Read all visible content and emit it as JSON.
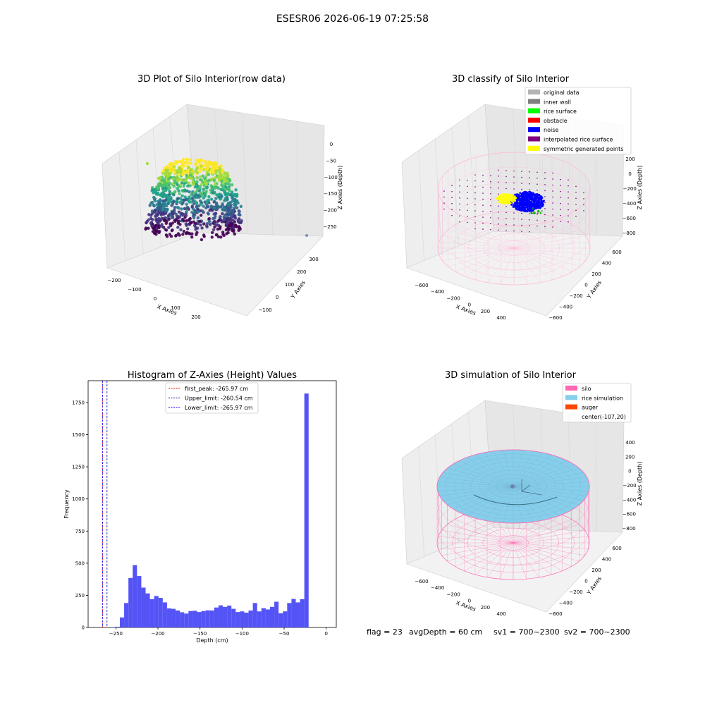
{
  "suptitle": "ESESR06 2026-06-19 07:25:58",
  "footer": {
    "flag": "flag = 23",
    "avgdepth": "avgDepth = 60 cm",
    "sv1": "sv1 = 700~2300",
    "sv2": "sv2 = 700~2300"
  },
  "colors": {
    "hist_bar": "#4b4bf5",
    "silo": "#ff69b4",
    "rice": "#87ceeb",
    "auger": "#ff4500",
    "noise": "#0000ff",
    "symmetric": "#ffff00",
    "rice_surface": "#00ff00"
  },
  "chart_data": [
    {
      "type": "scatter",
      "title": "3D Plot of Silo Interior(row data)",
      "xlabel": "X Axies",
      "ylabel": "Y Axies",
      "zlabel": "Z Axies (Depth)",
      "xticks": [
        "−200",
        "−100",
        "0",
        "100",
        "200"
      ],
      "yticks": [
        "−100",
        "0",
        "100",
        "200",
        "300"
      ],
      "zticks": [
        "0",
        "−50",
        "−100",
        "−150",
        "−200",
        "−250"
      ],
      "colormap": "viridis"
    },
    {
      "type": "scatter",
      "title": "3D classify of Silo Interior",
      "xlabel": "X Axies",
      "ylabel": "Y Axies",
      "zlabel": "Z Axies (Depth)",
      "xticks": [
        "−600",
        "−400",
        "−200",
        "0",
        "200",
        "400"
      ],
      "yticks": [
        "−600",
        "−400",
        "−200",
        "0",
        "200",
        "400",
        "600"
      ],
      "zticks": [
        "200",
        "0",
        "−200",
        "−400",
        "−600",
        "−800"
      ],
      "legend": [
        {
          "label": "original data",
          "color": "#b3b3b3"
        },
        {
          "label": "inner wall",
          "color": "#808080"
        },
        {
          "label": "rice surface",
          "color": "#00ff00"
        },
        {
          "label": "obstacle",
          "color": "#ff0000"
        },
        {
          "label": "noise",
          "color": "#0000ff"
        },
        {
          "label": "interpolated rice surface",
          "color": "#800080"
        },
        {
          "label": "symmetric generated points",
          "color": "#ffff00"
        }
      ],
      "legend_loc": "upper right"
    },
    {
      "type": "bar",
      "title": "Histogram of Z-Axies (Height) Values",
      "xlabel": "Depth (cm)",
      "ylabel": "Frequency",
      "xlim": [
        -283,
        12
      ],
      "ylim": [
        0,
        1920
      ],
      "xticks": [
        -250,
        -200,
        -150,
        -100,
        -50,
        0
      ],
      "xtick_labels": [
        "−250",
        "−200",
        "−150",
        "−100",
        "−50",
        "0"
      ],
      "yticks": [
        0,
        250,
        500,
        750,
        1000,
        1250,
        1500,
        1750
      ],
      "yticks_labels": [
        "0",
        "250",
        "500",
        "750",
        "1000",
        "1250",
        "1500",
        "1750"
      ],
      "bin_width": 5.1,
      "bin_start": -255.5,
      "values": [
        3,
        5,
        78,
        190,
        385,
        485,
        400,
        310,
        265,
        220,
        245,
        230,
        195,
        148,
        145,
        132,
        118,
        108,
        128,
        130,
        120,
        128,
        133,
        132,
        155,
        172,
        160,
        170,
        145,
        120,
        125,
        115,
        132,
        190,
        125,
        150,
        140,
        160,
        200,
        110,
        125,
        190,
        222,
        195,
        220,
        1820
      ],
      "vlines": [
        {
          "label": "first_peak: -265.97 cm",
          "x": -265.97,
          "color": "#ff0000"
        },
        {
          "label": "Upper_limit: -260.54 cm",
          "x": -260.54,
          "color": "#00008b"
        },
        {
          "label": "Lower_limit: -265.97 cm",
          "x": -265.97,
          "color": "#0000ff"
        }
      ],
      "legend_loc": "upper center"
    },
    {
      "type": "surface",
      "title": "3D simulation of Silo Interior",
      "xlabel": "X Axies",
      "ylabel": "Y Axies",
      "zlabel": "Z Axies (Depth)",
      "xticks": [
        "−600",
        "−400",
        "−200",
        "0",
        "200",
        "400"
      ],
      "yticks": [
        "−600",
        "−400",
        "−200",
        "0",
        "200",
        "400",
        "600"
      ],
      "zticks": [
        "400",
        "200",
        "0",
        "−200",
        "−400",
        "−600",
        "−800"
      ],
      "legend": [
        {
          "label": "silo",
          "color": "#ff69b4"
        },
        {
          "label": "rice simulation",
          "color": "#87ceeb"
        },
        {
          "label": "auger",
          "color": "#ff4500"
        },
        {
          "label": "center(-107,20)",
          "color": ""
        }
      ],
      "legend_loc": "upper right"
    }
  ]
}
